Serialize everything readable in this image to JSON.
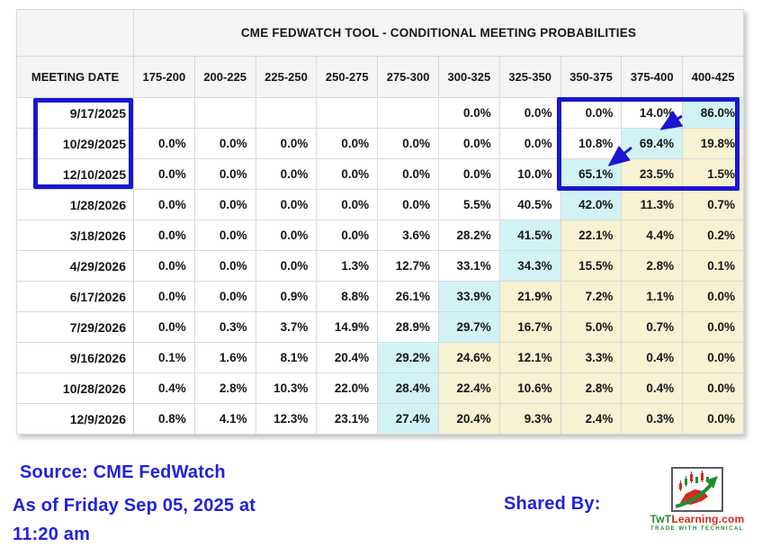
{
  "chart_data": {
    "type": "table",
    "title": "CME FEDWATCH TOOL - CONDITIONAL MEETING PROBABILITIES",
    "row_header": "MEETING DATE",
    "columns": [
      "175-200",
      "200-225",
      "225-250",
      "250-275",
      "275-300",
      "300-325",
      "325-350",
      "350-375",
      "375-400",
      "400-425"
    ],
    "rows": [
      {
        "date": "9/17/2025",
        "values": [
          "",
          "",
          "",
          "",
          "",
          "0.0%",
          "0.0%",
          "0.0%",
          "14.0%",
          "86.0%"
        ],
        "highlights": [
          "",
          "",
          "",
          "",
          "",
          "",
          "",
          "",
          "",
          "b"
        ]
      },
      {
        "date": "10/29/2025",
        "values": [
          "0.0%",
          "0.0%",
          "0.0%",
          "0.0%",
          "0.0%",
          "0.0%",
          "0.0%",
          "10.8%",
          "69.4%",
          "19.8%"
        ],
        "highlights": [
          "",
          "",
          "",
          "",
          "",
          "",
          "",
          "",
          "b",
          "y"
        ]
      },
      {
        "date": "12/10/2025",
        "values": [
          "0.0%",
          "0.0%",
          "0.0%",
          "0.0%",
          "0.0%",
          "0.0%",
          "10.0%",
          "65.1%",
          "23.5%",
          "1.5%"
        ],
        "highlights": [
          "",
          "",
          "",
          "",
          "",
          "",
          "",
          "b",
          "y",
          "y"
        ]
      },
      {
        "date": "1/28/2026",
        "values": [
          "0.0%",
          "0.0%",
          "0.0%",
          "0.0%",
          "0.0%",
          "5.5%",
          "40.5%",
          "42.0%",
          "11.3%",
          "0.7%"
        ],
        "highlights": [
          "",
          "",
          "",
          "",
          "",
          "",
          "",
          "b",
          "y",
          "y"
        ]
      },
      {
        "date": "3/18/2026",
        "values": [
          "0.0%",
          "0.0%",
          "0.0%",
          "0.0%",
          "3.6%",
          "28.2%",
          "41.5%",
          "22.1%",
          "4.4%",
          "0.2%"
        ],
        "highlights": [
          "",
          "",
          "",
          "",
          "",
          "",
          "b",
          "y",
          "y",
          "y"
        ]
      },
      {
        "date": "4/29/2026",
        "values": [
          "0.0%",
          "0.0%",
          "0.0%",
          "1.3%",
          "12.7%",
          "33.1%",
          "34.3%",
          "15.5%",
          "2.8%",
          "0.1%"
        ],
        "highlights": [
          "",
          "",
          "",
          "",
          "",
          "",
          "b",
          "y",
          "y",
          "y"
        ]
      },
      {
        "date": "6/17/2026",
        "values": [
          "0.0%",
          "0.0%",
          "0.9%",
          "8.8%",
          "26.1%",
          "33.9%",
          "21.9%",
          "7.2%",
          "1.1%",
          "0.0%"
        ],
        "highlights": [
          "",
          "",
          "",
          "",
          "",
          "b",
          "y",
          "y",
          "y",
          "y"
        ]
      },
      {
        "date": "7/29/2026",
        "values": [
          "0.0%",
          "0.3%",
          "3.7%",
          "14.9%",
          "28.9%",
          "29.7%",
          "16.7%",
          "5.0%",
          "0.7%",
          "0.0%"
        ],
        "highlights": [
          "",
          "",
          "",
          "",
          "",
          "b",
          "y",
          "y",
          "y",
          "y"
        ]
      },
      {
        "date": "9/16/2026",
        "values": [
          "0.1%",
          "1.6%",
          "8.1%",
          "20.4%",
          "29.2%",
          "24.6%",
          "12.1%",
          "3.3%",
          "0.4%",
          "0.0%"
        ],
        "highlights": [
          "",
          "",
          "",
          "",
          "b",
          "y",
          "y",
          "y",
          "y",
          "y"
        ]
      },
      {
        "date": "10/28/2026",
        "values": [
          "0.4%",
          "2.8%",
          "10.3%",
          "22.0%",
          "28.4%",
          "22.4%",
          "10.6%",
          "2.8%",
          "0.4%",
          "0.0%"
        ],
        "highlights": [
          "",
          "",
          "",
          "",
          "b",
          "y",
          "y",
          "y",
          "y",
          "y"
        ]
      },
      {
        "date": "12/9/2026",
        "values": [
          "0.8%",
          "4.1%",
          "12.3%",
          "23.1%",
          "27.4%",
          "20.4%",
          "9.3%",
          "2.4%",
          "0.3%",
          "0.0%"
        ],
        "highlights": [
          "",
          "",
          "",
          "",
          "b",
          "y",
          "y",
          "y",
          "y",
          "y"
        ]
      }
    ],
    "layout_hints": {
      "grid": true,
      "legend": false,
      "cell_highlight_codes": {
        "b": "cyan highlight",
        "y": "yellow highlight"
      }
    }
  },
  "annotations": {
    "date_box_rows": [
      "9/17/2025",
      "10/29/2025",
      "12/10/2025"
    ],
    "column_box_ranges": [
      "350-375",
      "375-400",
      "400-425"
    ],
    "arrow_links": [
      {
        "from_value": "86.0%",
        "to_value": "69.4%"
      },
      {
        "from_value": "69.4%",
        "to_value": "65.1%"
      }
    ]
  },
  "footer": {
    "source": "Source: CME FedWatch",
    "as_of_line1": "As of Friday Sep 05, 2025 at",
    "as_of_line2": "11:20 am",
    "shared_by": "Shared By:",
    "logo": {
      "brand_green": "TwT",
      "brand_red": "Learning.com",
      "tagline": "TRADE WITH TECHNICAL"
    }
  },
  "colors": {
    "highlight_blue": "#d2f3f6",
    "highlight_yellow": "#f6f2d2",
    "annotation_blue": "#1a16d0",
    "footer_text_blue": "#2222dd",
    "header_bg": "#f4f4f4",
    "grid_line": "#d9d9d9",
    "logo_green": "#1e8c2f",
    "logo_red": "#d42a1e"
  }
}
